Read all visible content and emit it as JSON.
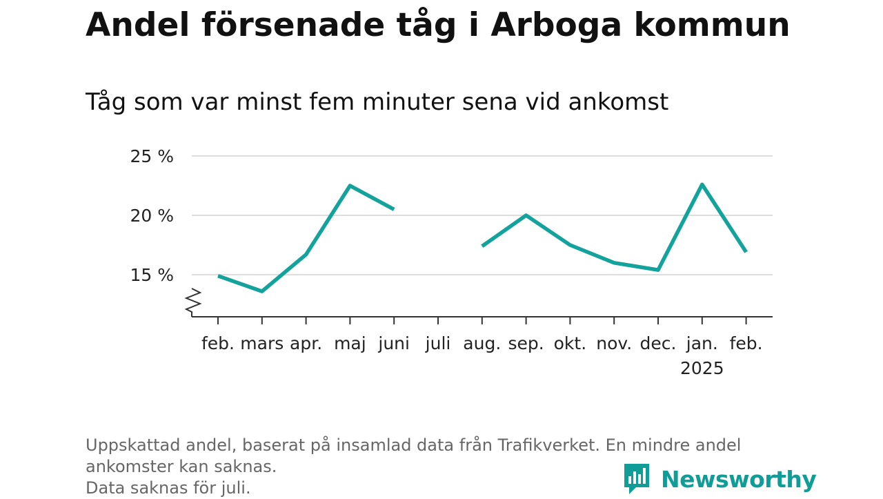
{
  "title": "Andel försenade tåg i Arboga kommun",
  "subtitle": "Tåg som var minst fem minuter sena vid ankomst",
  "footnote_lines": [
    "Uppskattad andel, baserat på insamlad data från Trafikverket. En mindre andel",
    "ankomster kan saknas.",
    "Data saknas för juli."
  ],
  "brand": "Newsworthy",
  "colors": {
    "line": "#13a29c",
    "brand": "#109c97",
    "grid": "#dddddd",
    "axis": "#333333"
  },
  "chart_data": {
    "type": "line",
    "title": "Andel försenade tåg i Arboga kommun",
    "subtitle": "Tåg som var minst fem minuter sena vid ankomst",
    "categories": [
      "feb.",
      "mars",
      "apr.",
      "maj",
      "juni",
      "juli",
      "aug.",
      "sep.",
      "okt.",
      "nov.",
      "dec.",
      "jan.",
      "feb."
    ],
    "year_label": {
      "index": 11,
      "text": "2025"
    },
    "series": [
      {
        "values": [
          14.9,
          13.6,
          16.7,
          22.5,
          20.5,
          null,
          17.4,
          20.0,
          17.5,
          16.0,
          15.4,
          22.6,
          16.9
        ]
      }
    ],
    "y_ticks": [
      15,
      20,
      25
    ],
    "y_tick_labels": [
      "15 %",
      "20 %",
      "25 %"
    ],
    "ylim": [
      12,
      25
    ],
    "y_axis_break": true,
    "grid": true,
    "legend": "none"
  }
}
